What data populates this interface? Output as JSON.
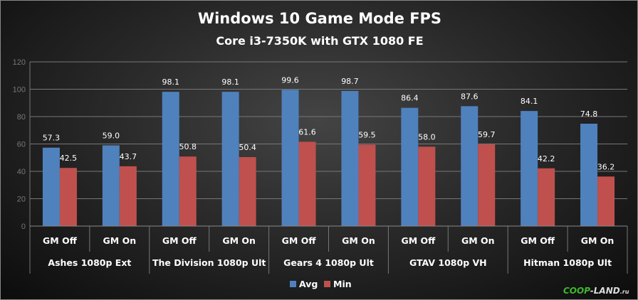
{
  "chart_data": {
    "type": "bar",
    "title": "Windows 10 Game Mode FPS",
    "subtitle": "Core i3-7350K with GTX 1080 FE",
    "groups": [
      "Ashes 1080p Ext",
      "The Division 1080p Ult",
      "Gears 4 1080p Ult",
      "GTAV 1080p VH",
      "Hitman 1080p Ult"
    ],
    "categories": [
      "GM Off",
      "GM On",
      "GM Off",
      "GM On",
      "GM Off",
      "GM On",
      "GM Off",
      "GM On",
      "GM Off",
      "GM On"
    ],
    "series": [
      {
        "name": "Avg",
        "color": "#4f81bd",
        "values": [
          57.3,
          59.0,
          98.1,
          98.1,
          99.6,
          98.7,
          86.4,
          87.6,
          84.1,
          74.8
        ]
      },
      {
        "name": "Min",
        "color": "#c0504d",
        "values": [
          42.5,
          43.7,
          50.8,
          50.4,
          61.6,
          59.5,
          58.0,
          59.7,
          42.2,
          36.2
        ]
      }
    ],
    "ylim": [
      0,
      120
    ],
    "yticks": [
      0,
      20,
      40,
      60,
      80,
      100,
      120
    ],
    "grid": true,
    "legend": "bottom"
  },
  "watermark": {
    "text_a": "COOP",
    "text_b": "-LAND",
    "text_c": ".ru"
  }
}
